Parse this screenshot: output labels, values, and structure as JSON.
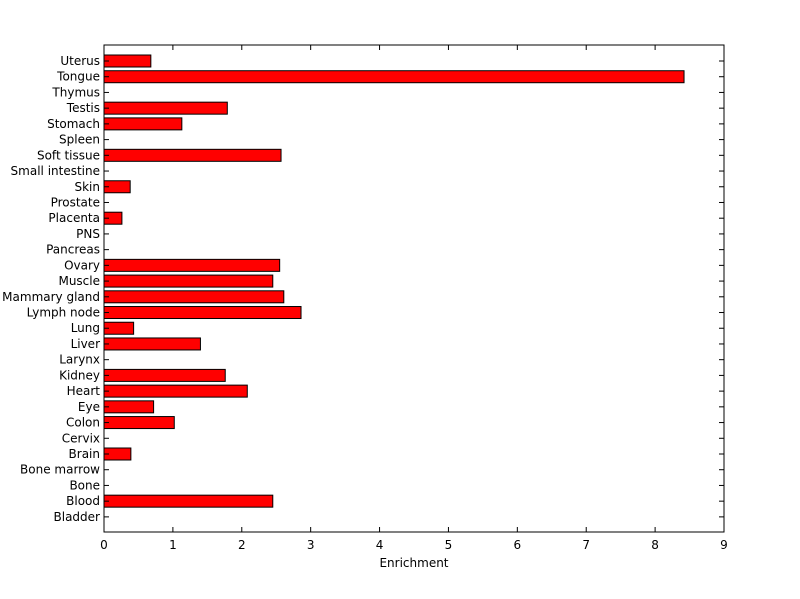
{
  "chart_data": {
    "type": "bar",
    "orientation": "horizontal",
    "title": "",
    "xlabel": "Enrichment",
    "ylabel": "",
    "xlim": [
      0,
      9
    ],
    "xticks": [
      "0",
      "1",
      "2",
      "3",
      "4",
      "5",
      "6",
      "7",
      "8",
      "9"
    ],
    "grid": false,
    "bar_color": "#ff0000",
    "edge_color": "#000000",
    "categories": [
      "Uterus",
      "Tongue",
      "Thymus",
      "Testis",
      "Stomach",
      "Spleen",
      "Soft tissue",
      "Small intestine",
      "Skin",
      "Prostate",
      "Placenta",
      "PNS",
      "Pancreas",
      "Ovary",
      "Muscle",
      "Mammary gland",
      "Lymph node",
      "Lung",
      "Liver",
      "Larynx",
      "Kidney",
      "Heart",
      "Eye",
      "Colon",
      "Cervix",
      "Brain",
      "Bone marrow",
      "Bone",
      "Blood",
      "Bladder"
    ],
    "values": [
      0.68,
      8.42,
      0,
      1.79,
      1.13,
      0,
      2.57,
      0,
      0.38,
      0,
      0.26,
      0,
      0,
      2.55,
      2.45,
      2.61,
      2.86,
      0.43,
      1.4,
      0,
      1.76,
      2.08,
      0.72,
      1.02,
      0,
      0.39,
      0,
      0,
      2.45,
      0
    ]
  }
}
